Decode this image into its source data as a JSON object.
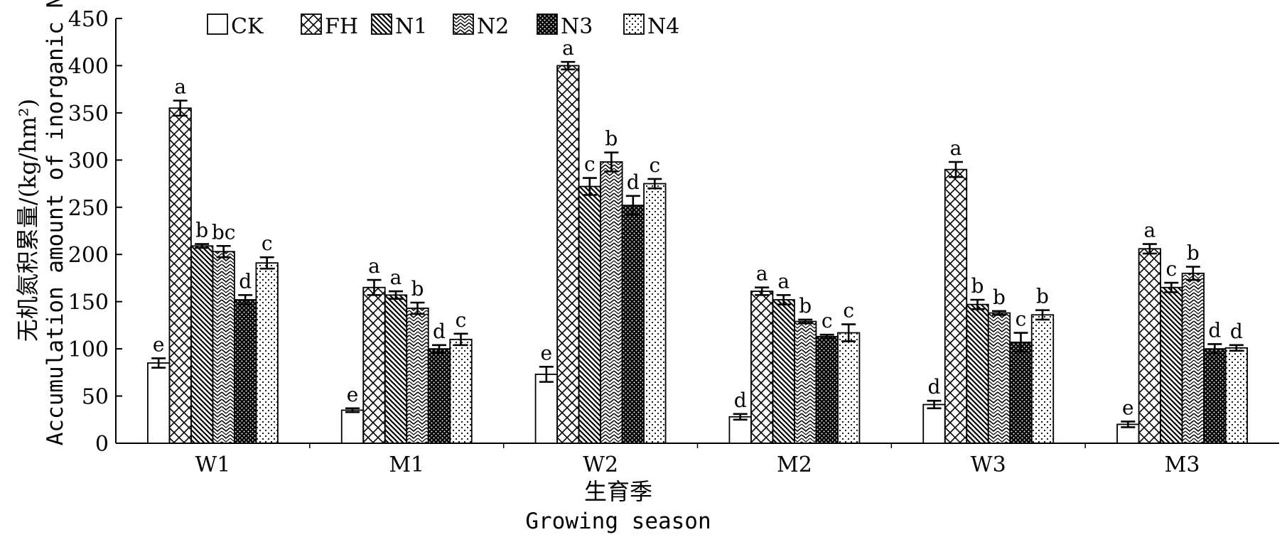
{
  "chart_data": {
    "type": "bar",
    "categories": [
      "W1",
      "M1",
      "W2",
      "M2",
      "W3",
      "M3"
    ],
    "series": [
      {
        "name": "CK",
        "values": [
          85,
          35,
          73,
          28,
          41,
          20
        ],
        "errors": [
          5,
          2,
          8,
          3,
          4,
          3
        ],
        "letters": [
          "e",
          "e",
          "e",
          "d",
          "d",
          "e"
        ],
        "pattern": "none"
      },
      {
        "name": "FH",
        "values": [
          355,
          165,
          400,
          161,
          290,
          206
        ],
        "errors": [
          8,
          8,
          4,
          4,
          8,
          5
        ],
        "letters": [
          "a",
          "a",
          "a",
          "a",
          "a",
          "a"
        ],
        "pattern": "cross"
      },
      {
        "name": "N1",
        "values": [
          209,
          157,
          272,
          152,
          147,
          165
        ],
        "errors": [
          2,
          4,
          9,
          5,
          5,
          5
        ],
        "letters": [
          "b",
          "a",
          "c",
          "a",
          "b",
          "c"
        ],
        "pattern": "diag-down"
      },
      {
        "name": "N2",
        "values": [
          203,
          143,
          298,
          129,
          138,
          180
        ],
        "errors": [
          6,
          6,
          10,
          2,
          2,
          7
        ],
        "letters": [
          "bc",
          "b",
          "b",
          "b",
          "b",
          "b"
        ],
        "pattern": "zigzag"
      },
      {
        "name": "N3",
        "values": [
          152,
          100,
          252,
          113,
          107,
          100
        ],
        "errors": [
          5,
          4,
          10,
          2,
          10,
          5
        ],
        "letters": [
          "d",
          "d",
          "d",
          "c",
          "c",
          "d"
        ],
        "pattern": "dense"
      },
      {
        "name": "N4",
        "values": [
          191,
          110,
          275,
          117,
          136,
          101
        ],
        "errors": [
          6,
          6,
          5,
          9,
          5,
          3
        ],
        "letters": [
          "c",
          "c",
          "c",
          "c",
          "b",
          "d"
        ],
        "pattern": "dots"
      }
    ],
    "ylim": [
      0,
      450
    ],
    "yticks": [
      0,
      50,
      100,
      150,
      200,
      250,
      300,
      350,
      400,
      450
    ],
    "ylabel_cn": "无机氮积累量/(kg/hm²)",
    "ylabel_en": "Accumulation amount of inorganic N",
    "xlabel_cn": "生育季",
    "xlabel_en": "Growing season",
    "legend_position": "top",
    "grid": false
  }
}
